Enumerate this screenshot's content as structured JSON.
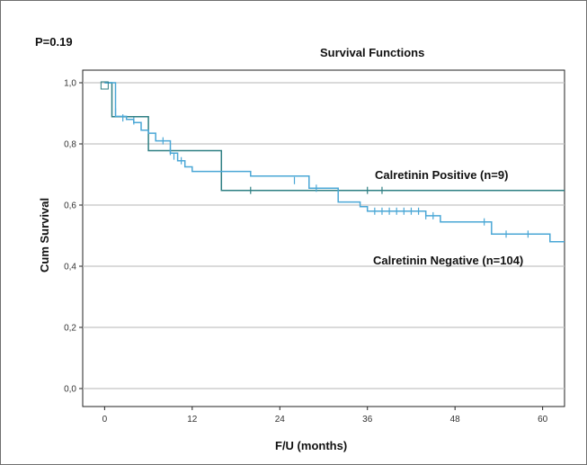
{
  "header": {
    "p_value": "P=0.19",
    "title": "Survival Functions"
  },
  "chart_data": {
    "type": "line",
    "subtype": "kaplan-meier step",
    "title": "Survival Functions",
    "xlabel": "F/U (months)",
    "ylabel": "Cum Survival",
    "xlim": [
      -3,
      63
    ],
    "ylim": [
      0.0,
      1.0
    ],
    "xticks": [
      0,
      12,
      24,
      36,
      48,
      60
    ],
    "xtick_labels": [
      "0",
      "12",
      "24",
      "36",
      "48",
      "60"
    ],
    "yticks": [
      0.0,
      0.2,
      0.4,
      0.6,
      0.8,
      1.0
    ],
    "ytick_labels": [
      "0,0",
      "0,2",
      "0,4",
      "0,6",
      "0,8",
      "1,0"
    ],
    "grid": "horizontal",
    "series": [
      {
        "name": "Calretinin Positive (n=9)",
        "color": "#2e7f83",
        "x": [
          0,
          1,
          1,
          6,
          6,
          16,
          16,
          63
        ],
        "y": [
          1.0,
          1.0,
          0.889,
          0.889,
          0.778,
          0.778,
          0.648,
          0.648
        ],
        "censored_x": [
          20,
          36,
          38
        ],
        "censored_y": [
          0.648,
          0.648,
          0.648
        ]
      },
      {
        "name": "Calretinin Negative (n=104)",
        "color": "#4aa7d6",
        "x": [
          0,
          1.5,
          1.5,
          3,
          3,
          4,
          4,
          5,
          5,
          6,
          6,
          7,
          7,
          9,
          9,
          10,
          10,
          11,
          11,
          12,
          12,
          20,
          20,
          28,
          28,
          32,
          32,
          35,
          35,
          36,
          36,
          44,
          44,
          46,
          46,
          53,
          53,
          61,
          61,
          63
        ],
        "y": [
          1.0,
          1.0,
          0.89,
          0.89,
          0.88,
          0.88,
          0.87,
          0.87,
          0.845,
          0.845,
          0.835,
          0.835,
          0.81,
          0.81,
          0.77,
          0.77,
          0.745,
          0.745,
          0.725,
          0.725,
          0.71,
          0.71,
          0.695,
          0.695,
          0.655,
          0.655,
          0.61,
          0.61,
          0.595,
          0.595,
          0.58,
          0.58,
          0.565,
          0.565,
          0.545,
          0.545,
          0.505,
          0.505,
          0.48,
          0.48
        ],
        "censored_x": [
          1.5,
          2.5,
          4,
          8,
          9,
          9.5,
          10.5,
          26,
          29,
          37,
          38,
          39,
          40,
          41,
          42,
          43,
          44,
          45,
          52,
          55,
          58
        ],
        "censored_y": [
          0.905,
          0.885,
          0.875,
          0.81,
          0.775,
          0.76,
          0.745,
          0.68,
          0.655,
          0.58,
          0.58,
          0.58,
          0.58,
          0.58,
          0.58,
          0.58,
          0.565,
          0.565,
          0.545,
          0.505,
          0.505
        ]
      }
    ],
    "annotations": [
      {
        "text": "Calretinin Positive (n=9)",
        "series": 0
      },
      {
        "text": "Calretinin Negative (n=104)",
        "series": 1
      }
    ]
  }
}
